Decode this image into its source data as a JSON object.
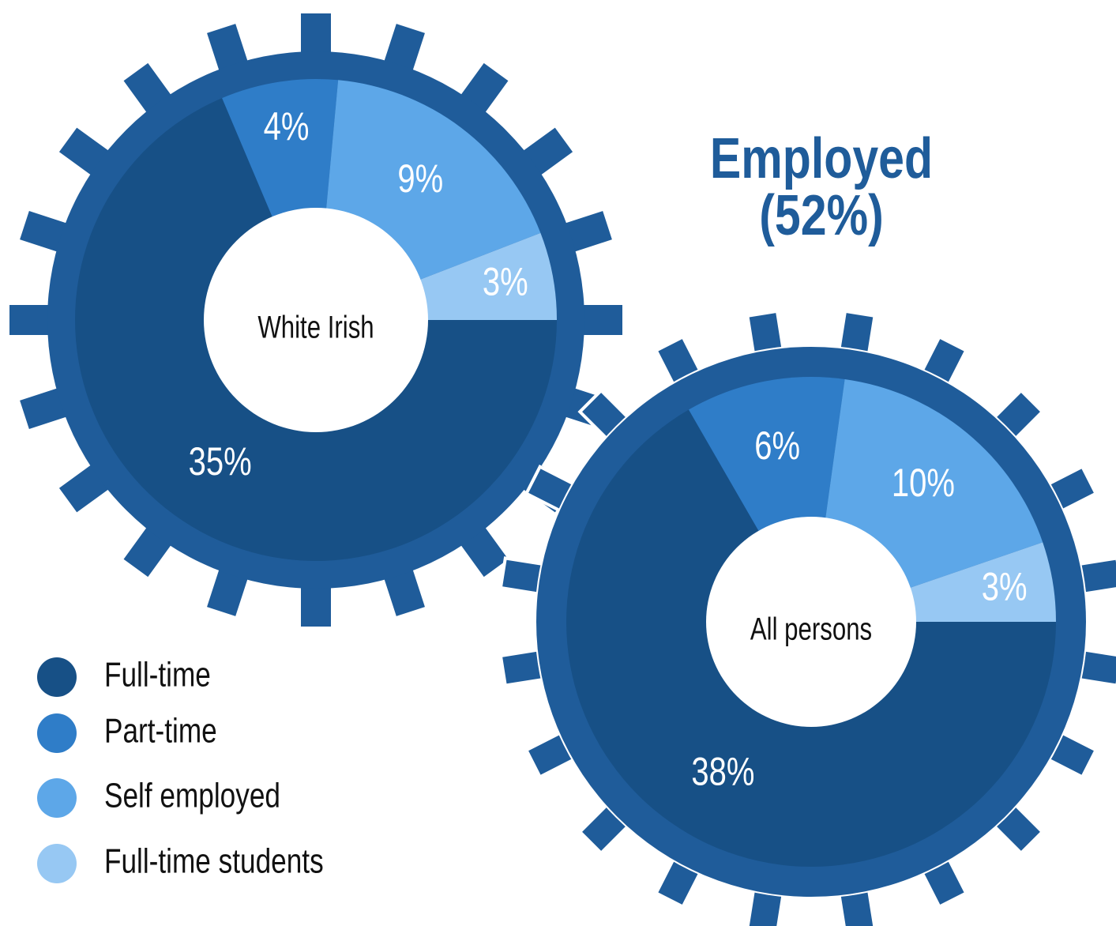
{
  "title": "Employed (52%)",
  "chart_data": [
    {
      "type": "pie",
      "center_label": "White Irish",
      "categories": [
        "Full-time",
        "Part-time",
        "Self employed",
        "Full-time students"
      ],
      "values": [
        35,
        4,
        9,
        3
      ],
      "value_labels": [
        "35%",
        "4%",
        "9%",
        "3%"
      ],
      "colors": [
        "#175086",
        "#2f7dc8",
        "#5da7e8",
        "#97c8f3"
      ]
    },
    {
      "type": "pie",
      "center_label": "All persons",
      "categories": [
        "Full-time",
        "Part-time",
        "Self employed",
        "Full-time students"
      ],
      "values": [
        38,
        6,
        10,
        3
      ],
      "value_labels": [
        "38%",
        "6%",
        "10%",
        "3%"
      ],
      "colors": [
        "#175086",
        "#2f7dc8",
        "#5da7e8",
        "#97c8f3"
      ]
    }
  ]
}
